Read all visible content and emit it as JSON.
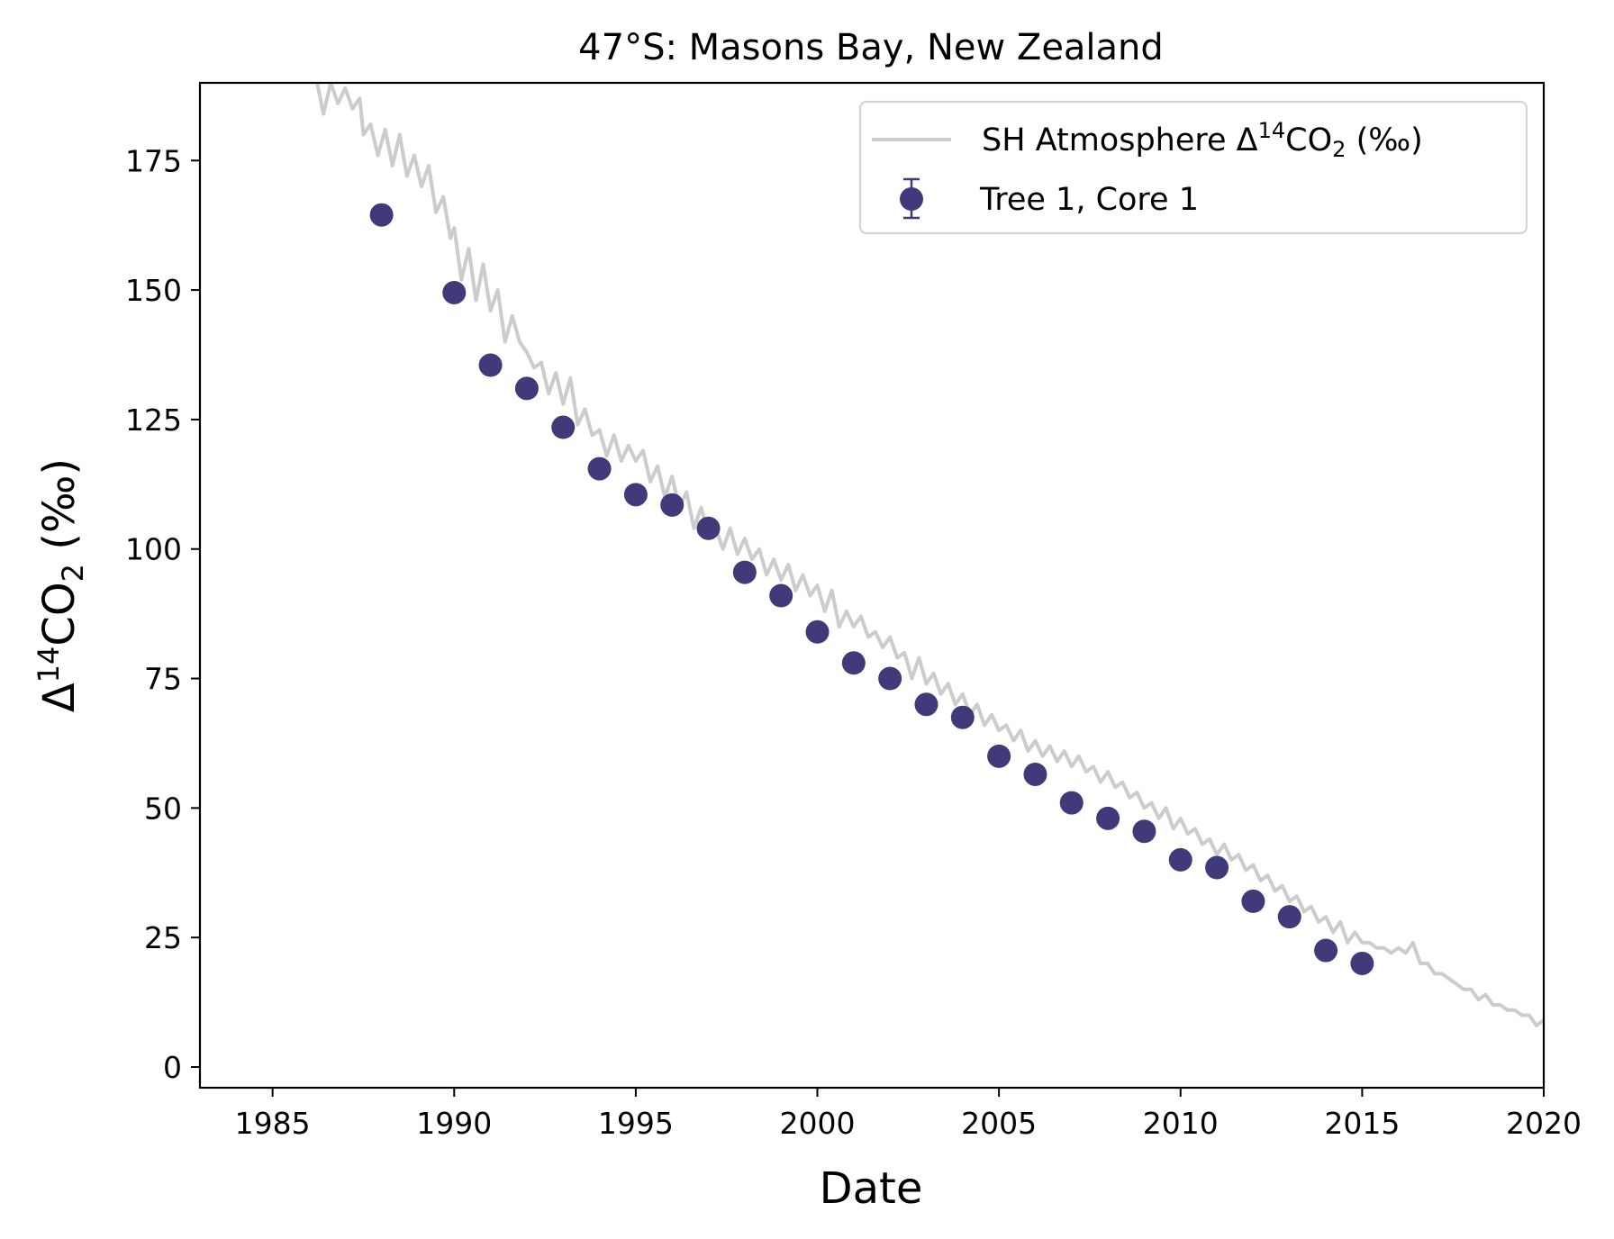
{
  "chart_data": {
    "type": "scatter",
    "title": "47°S: Masons Bay, New Zealand",
    "xlabel": "Date",
    "ylabel": {
      "prefix": "Δ",
      "sup": "14",
      "mid": "CO",
      "sub": "2",
      "suffix": " (‰)"
    },
    "xlim": [
      1983,
      2020
    ],
    "ylim": [
      -4,
      190
    ],
    "x_ticks": [
      1985,
      1990,
      1995,
      2000,
      2005,
      2010,
      2015,
      2020
    ],
    "y_ticks": [
      0,
      25,
      50,
      75,
      100,
      125,
      150,
      175
    ],
    "grid": false,
    "legend_position": "top-right",
    "colors": {
      "atmosphere": "#cccccc",
      "tree": "#3f3a7a"
    },
    "series": [
      {
        "name": {
          "prefix": "SH Atmosphere Δ",
          "sup": "14",
          "mid": "CO",
          "sub": "2",
          "suffix": " (‰)"
        },
        "kind": "line",
        "x": [
          1986.2,
          1986.4,
          1986.6,
          1986.8,
          1987.0,
          1987.2,
          1987.4,
          1987.5,
          1987.7,
          1987.9,
          1988.1,
          1988.3,
          1988.5,
          1988.7,
          1988.9,
          1989.1,
          1989.3,
          1989.5,
          1989.7,
          1989.9,
          1990.0,
          1990.2,
          1990.4,
          1990.6,
          1990.8,
          1991.0,
          1991.2,
          1991.4,
          1991.6,
          1991.8,
          1992.0,
          1992.2,
          1992.4,
          1992.6,
          1992.8,
          1993.0,
          1993.2,
          1993.4,
          1993.6,
          1993.8,
          1994.0,
          1994.2,
          1994.4,
          1994.6,
          1994.8,
          1995.0,
          1995.2,
          1995.4,
          1995.6,
          1995.8,
          1996.0,
          1996.2,
          1996.4,
          1996.6,
          1996.8,
          1997.0,
          1997.2,
          1997.4,
          1997.6,
          1997.8,
          1998.0,
          1998.2,
          1998.4,
          1998.6,
          1998.8,
          1999.0,
          1999.2,
          1999.4,
          1999.6,
          1999.8,
          2000.0,
          2000.2,
          2000.4,
          2000.6,
          2000.8,
          2001.0,
          2001.2,
          2001.4,
          2001.6,
          2001.8,
          2002.0,
          2002.2,
          2002.4,
          2002.6,
          2002.8,
          2003.0,
          2003.2,
          2003.4,
          2003.6,
          2003.8,
          2004.0,
          2004.2,
          2004.4,
          2004.6,
          2004.8,
          2005.0,
          2005.2,
          2005.4,
          2005.6,
          2005.8,
          2006.0,
          2006.2,
          2006.4,
          2006.6,
          2006.8,
          2007.0,
          2007.2,
          2007.4,
          2007.6,
          2007.8,
          2008.0,
          2008.2,
          2008.4,
          2008.6,
          2008.8,
          2009.0,
          2009.2,
          2009.4,
          2009.6,
          2009.8,
          2010.0,
          2010.2,
          2010.4,
          2010.6,
          2010.8,
          2011.0,
          2011.2,
          2011.4,
          2011.6,
          2011.8,
          2012.0,
          2012.2,
          2012.4,
          2012.6,
          2012.8,
          2013.0,
          2013.2,
          2013.4,
          2013.6,
          2013.8,
          2014.0,
          2014.2,
          2014.4,
          2014.6,
          2014.8,
          2015.0,
          2015.2,
          2015.4,
          2015.6,
          2015.8,
          2016.0,
          2016.2,
          2016.4,
          2016.6,
          2016.8,
          2017.0,
          2017.2,
          2017.4,
          2017.6,
          2017.8,
          2018.0,
          2018.2,
          2018.4,
          2018.6,
          2018.8,
          2019.0,
          2019.2,
          2019.4,
          2019.6,
          2019.8,
          2020.0
        ],
        "y": [
          191,
          184,
          190,
          186,
          189,
          185,
          187,
          180,
          182,
          176,
          181,
          174,
          180,
          172,
          176,
          170,
          174,
          165,
          168,
          160,
          162,
          152,
          158,
          148,
          155,
          146,
          150,
          140,
          145,
          140,
          138,
          135,
          136,
          130,
          134,
          128,
          133,
          124,
          127,
          122,
          123,
          118,
          122,
          117,
          120,
          117,
          119,
          113,
          116,
          110,
          114,
          108,
          111,
          104,
          108,
          103,
          104,
          100,
          104,
          99,
          102,
          98,
          100,
          95,
          98,
          94,
          97,
          92,
          95,
          91,
          93,
          88,
          92,
          85,
          88,
          85,
          87,
          83,
          84,
          81,
          83,
          79,
          80,
          75,
          79,
          74,
          76,
          72,
          74,
          70,
          72,
          68,
          70,
          66,
          68,
          65,
          66,
          63,
          65,
          61,
          63,
          60,
          62,
          59,
          61,
          58,
          60,
          57,
          58,
          55,
          57,
          54,
          55,
          52,
          53,
          50,
          51,
          48,
          50,
          46,
          48,
          45,
          46,
          43,
          44,
          41,
          43,
          40,
          41,
          38,
          39,
          36,
          37,
          34,
          35,
          32,
          33,
          30,
          31,
          28,
          29,
          26,
          28,
          24,
          26,
          24,
          24,
          23,
          23,
          22,
          23,
          22,
          24,
          20,
          20,
          18,
          18,
          17,
          16,
          15,
          15,
          13,
          14,
          12,
          12,
          11,
          11,
          10,
          10,
          8,
          9
        ]
      },
      {
        "name": "Tree 1, Core 1",
        "kind": "errorbar",
        "x": [
          1988,
          1990,
          1991,
          1992,
          1993,
          1994,
          1995,
          1996,
          1997,
          1998,
          1999,
          2000,
          2001,
          2002,
          2003,
          2004,
          2005,
          2006,
          2007,
          2008,
          2009,
          2010,
          2011,
          2012,
          2013,
          2014,
          2015
        ],
        "y": [
          164.5,
          149.5,
          135.5,
          131,
          123.5,
          115.5,
          110.5,
          108.5,
          104,
          95.5,
          91,
          84,
          78,
          75,
          70,
          67.5,
          60,
          56.5,
          51,
          48,
          45.5,
          40,
          38.5,
          32,
          29,
          22.5,
          20
        ]
      }
    ]
  }
}
